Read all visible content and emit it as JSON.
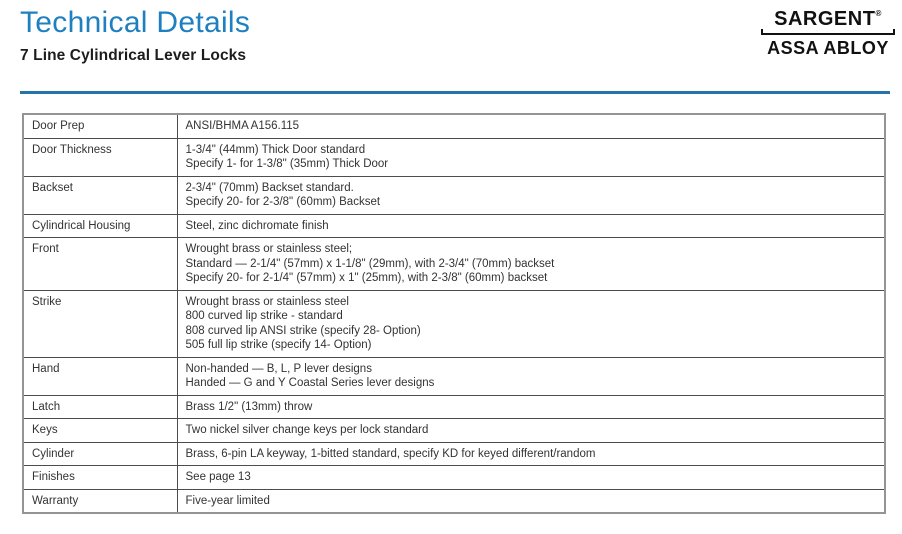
{
  "page": {
    "title": "Technical Details",
    "subtitle": "7 Line Cylindrical Lever Locks"
  },
  "logo": {
    "brand": "SARGENT",
    "trademark": "®",
    "parent": "ASSA ABLOY"
  },
  "colors": {
    "title_blue": "#1e80c0",
    "rule_blue": "#2673a8"
  },
  "table": {
    "rows": [
      {
        "label": "Door Prep",
        "lines": [
          "ANSI/BHMA A156.115"
        ]
      },
      {
        "label": "Door Thickness",
        "lines": [
          "1-3/4\" (44mm) Thick Door standard",
          "Specify 1- for 1-3/8\" (35mm) Thick Door"
        ]
      },
      {
        "label": "Backset",
        "lines": [
          "2-3/4\" (70mm) Backset standard.",
          "Specify 20- for 2-3/8\" (60mm) Backset"
        ]
      },
      {
        "label": "Cylindrical Housing",
        "lines": [
          "Steel, zinc dichromate finish"
        ]
      },
      {
        "label": "Front",
        "lines": [
          "Wrought brass or stainless steel;",
          "Standard — 2-1/4\" (57mm) x 1-1/8\" (29mm), with 2-3/4\" (70mm) backset",
          "Specify 20- for 2-1/4\" (57mm) x 1\" (25mm), with 2-3/8\" (60mm) backset"
        ]
      },
      {
        "label": "Strike",
        "lines": [
          "Wrought brass or stainless steel",
          "800 curved lip strike - standard",
          "808 curved lip ANSI strike (specify 28- Option)",
          "505 full lip strike (specify 14- Option)"
        ]
      },
      {
        "label": "Hand",
        "lines": [
          "Non-handed — B, L, P lever designs",
          "Handed — G and Y Coastal Series lever designs"
        ]
      },
      {
        "label": "Latch",
        "lines": [
          "Brass 1/2\" (13mm) throw"
        ]
      },
      {
        "label": "Keys",
        "lines": [
          "Two nickel silver change keys per lock standard"
        ]
      },
      {
        "label": "Cylinder",
        "lines": [
          "Brass, 6-pin LA keyway, 1-bitted standard, specify KD for keyed different/random"
        ]
      },
      {
        "label": "Finishes",
        "lines": [
          "See page 13"
        ]
      },
      {
        "label": "Warranty",
        "lines": [
          "Five-year limited"
        ]
      }
    ]
  }
}
